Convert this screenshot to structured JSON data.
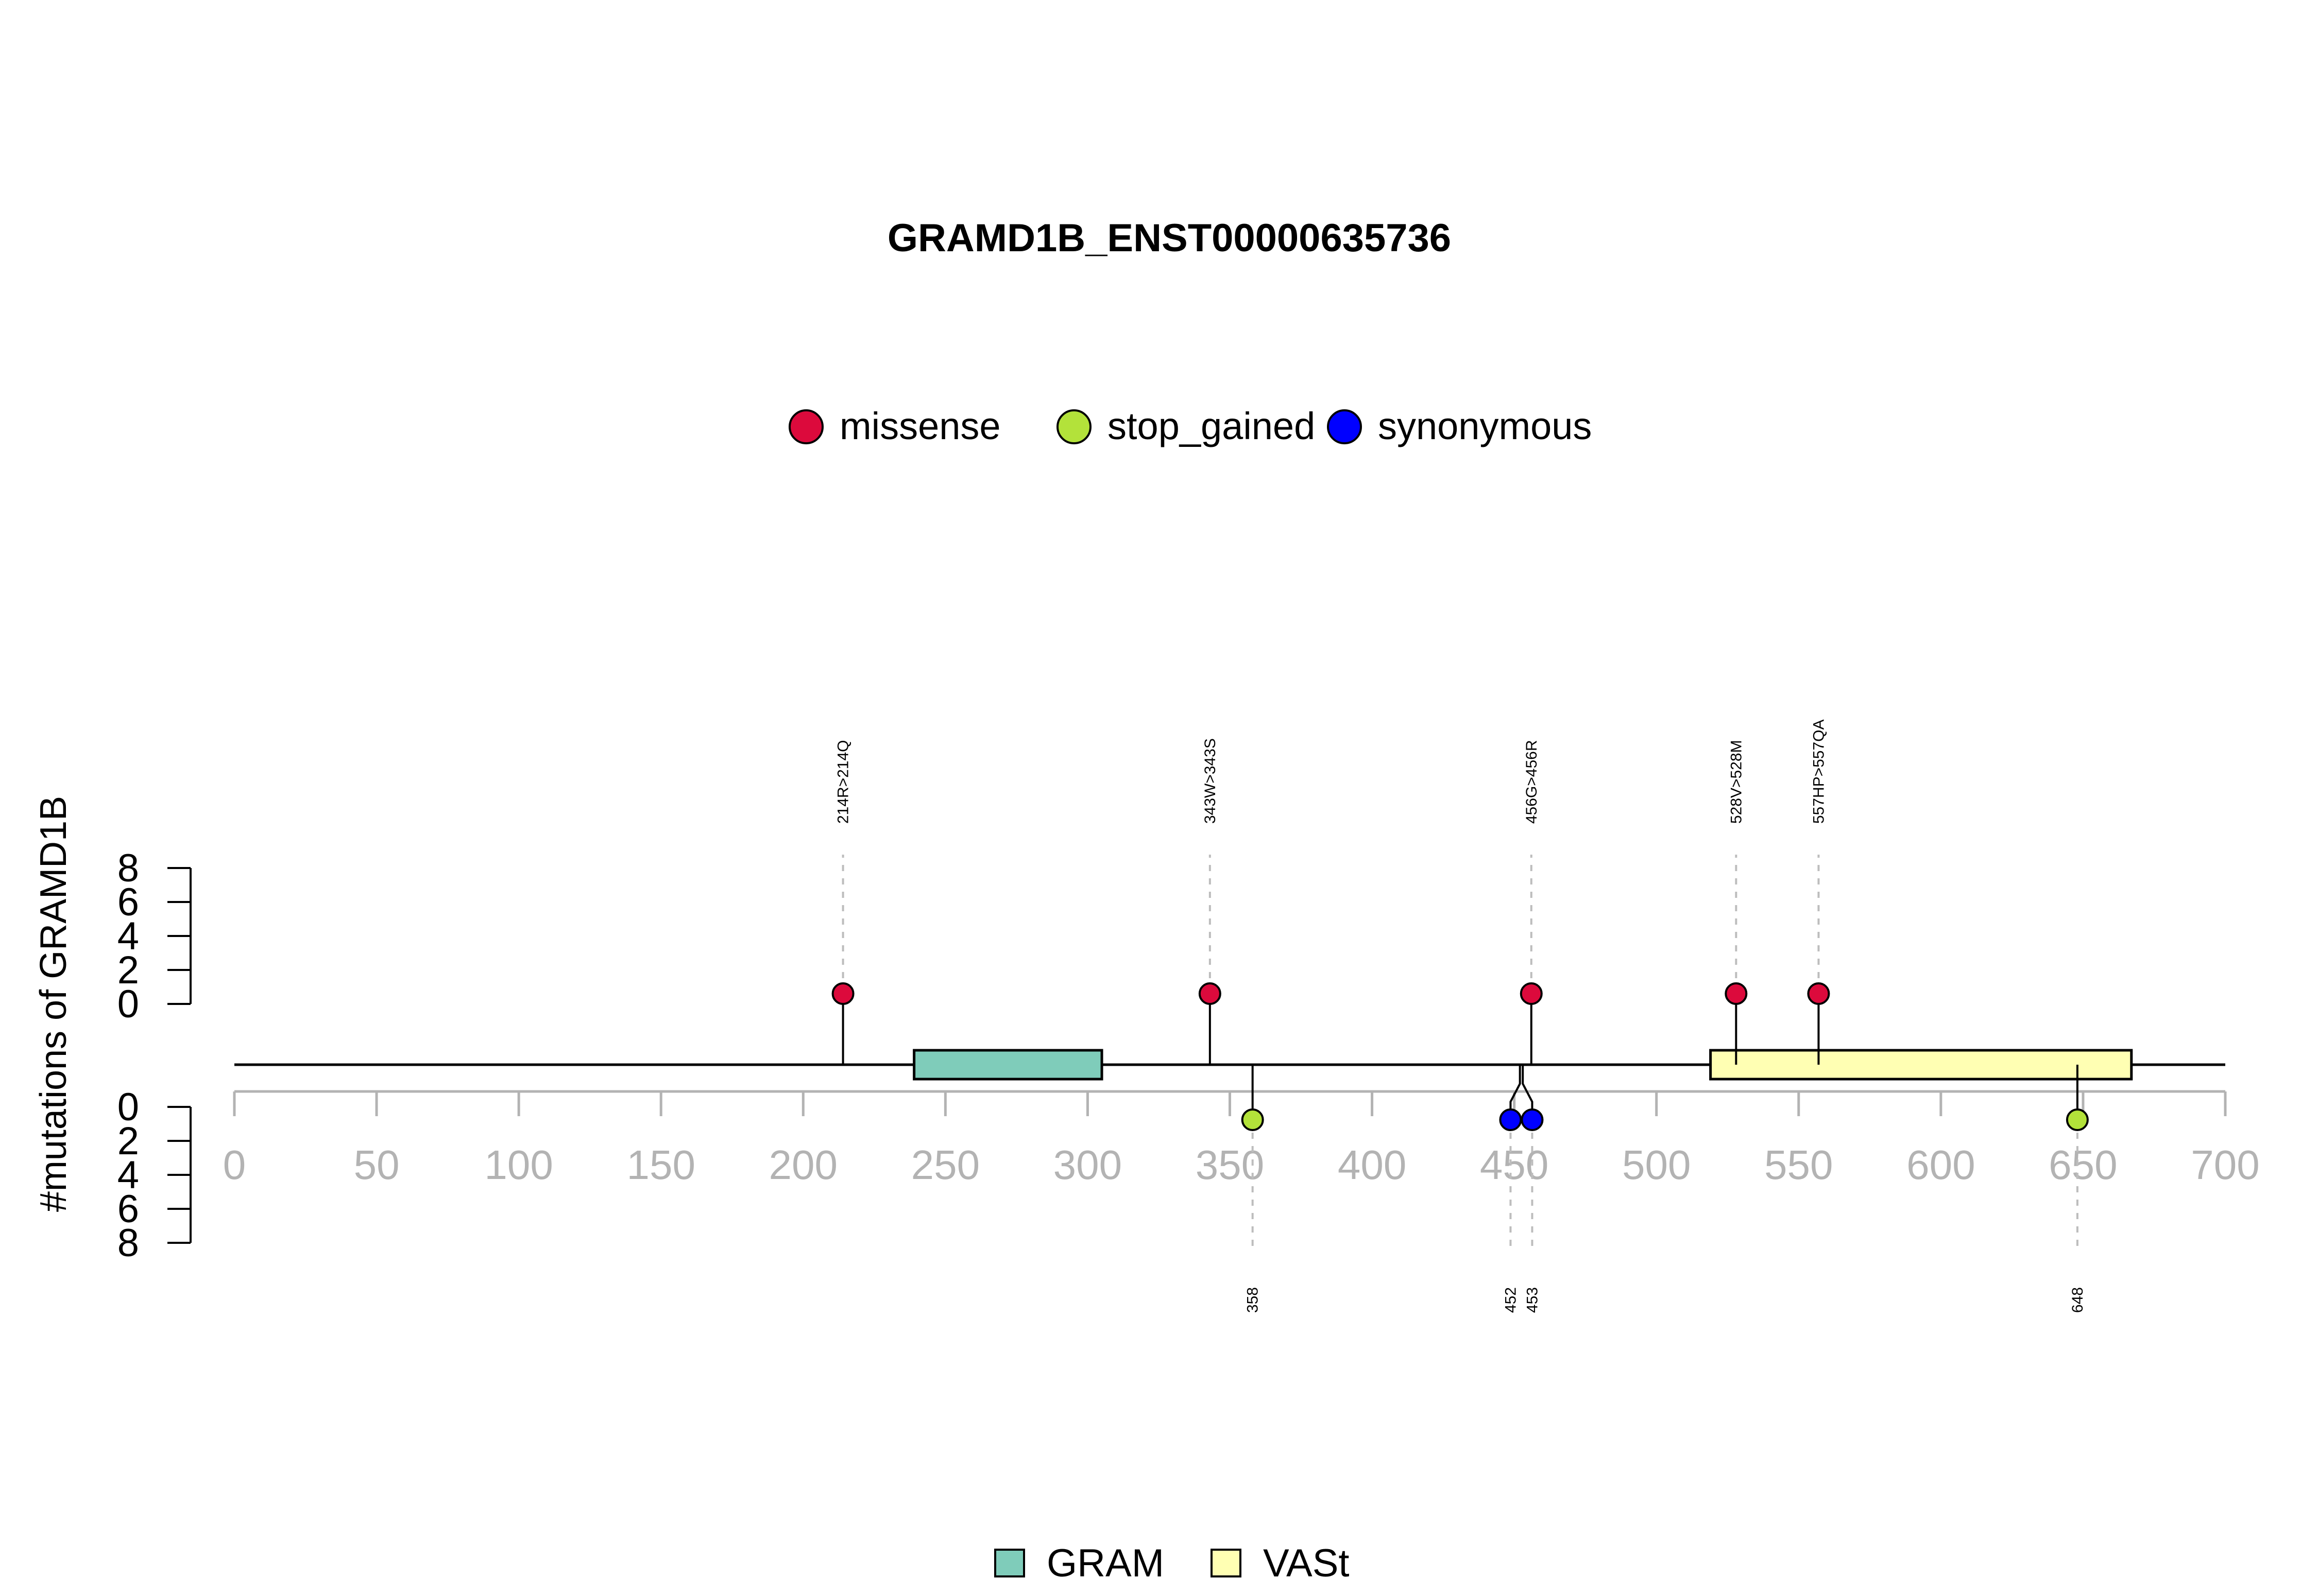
{
  "chart_data": {
    "type": "lollipop",
    "title": "GRAMD1B_ENST00000635736",
    "ylabel": "#mutations of GRAMD1B",
    "xlim": [
      0,
      700
    ],
    "x_ticks": [
      "0",
      "50",
      "100",
      "150",
      "200",
      "250",
      "300",
      "350",
      "400",
      "450",
      "500",
      "550",
      "600",
      "650",
      "700"
    ],
    "y_ticks_upper": [
      "0",
      "2",
      "4",
      "6",
      "8"
    ],
    "y_ticks_lower": [
      "0",
      "2",
      "4",
      "6",
      "8"
    ],
    "ylim": [
      0,
      8
    ],
    "legend_mutations": [
      {
        "name": "missense",
        "color": "#dc0a3c"
      },
      {
        "name": "stop_gained",
        "color": "#b3e23a"
      },
      {
        "name": "synonymous",
        "color": "#0000ff"
      }
    ],
    "legend_domains": [
      {
        "name": "GRAM",
        "color": "#7fccba"
      },
      {
        "name": "VASt",
        "color": "#ffffb3"
      }
    ],
    "domains": [
      {
        "name": "GRAM",
        "start": 239,
        "end": 305
      },
      {
        "name": "VASt",
        "start": 519,
        "end": 667
      }
    ],
    "mutations_upper": [
      {
        "pos": 214,
        "count": 1,
        "type": "missense",
        "label": "214R>214Q"
      },
      {
        "pos": 343,
        "count": 1,
        "type": "missense",
        "label": "343W>343S"
      },
      {
        "pos": 456,
        "count": 1,
        "type": "missense",
        "label": "456G>456R"
      },
      {
        "pos": 528,
        "count": 1,
        "type": "missense",
        "label": "528V>528M"
      },
      {
        "pos": 557,
        "count": 1,
        "type": "missense",
        "label": "557HP>557QA"
      }
    ],
    "mutations_lower": [
      {
        "pos": 358,
        "count": 1,
        "type": "stop_gained",
        "label": "358"
      },
      {
        "pos": 452,
        "count": 1,
        "type": "synonymous",
        "label": "452"
      },
      {
        "pos": 453,
        "count": 1,
        "type": "synonymous",
        "label": "453"
      },
      {
        "pos": 648,
        "count": 1,
        "type": "stop_gained",
        "label": "648"
      }
    ]
  }
}
